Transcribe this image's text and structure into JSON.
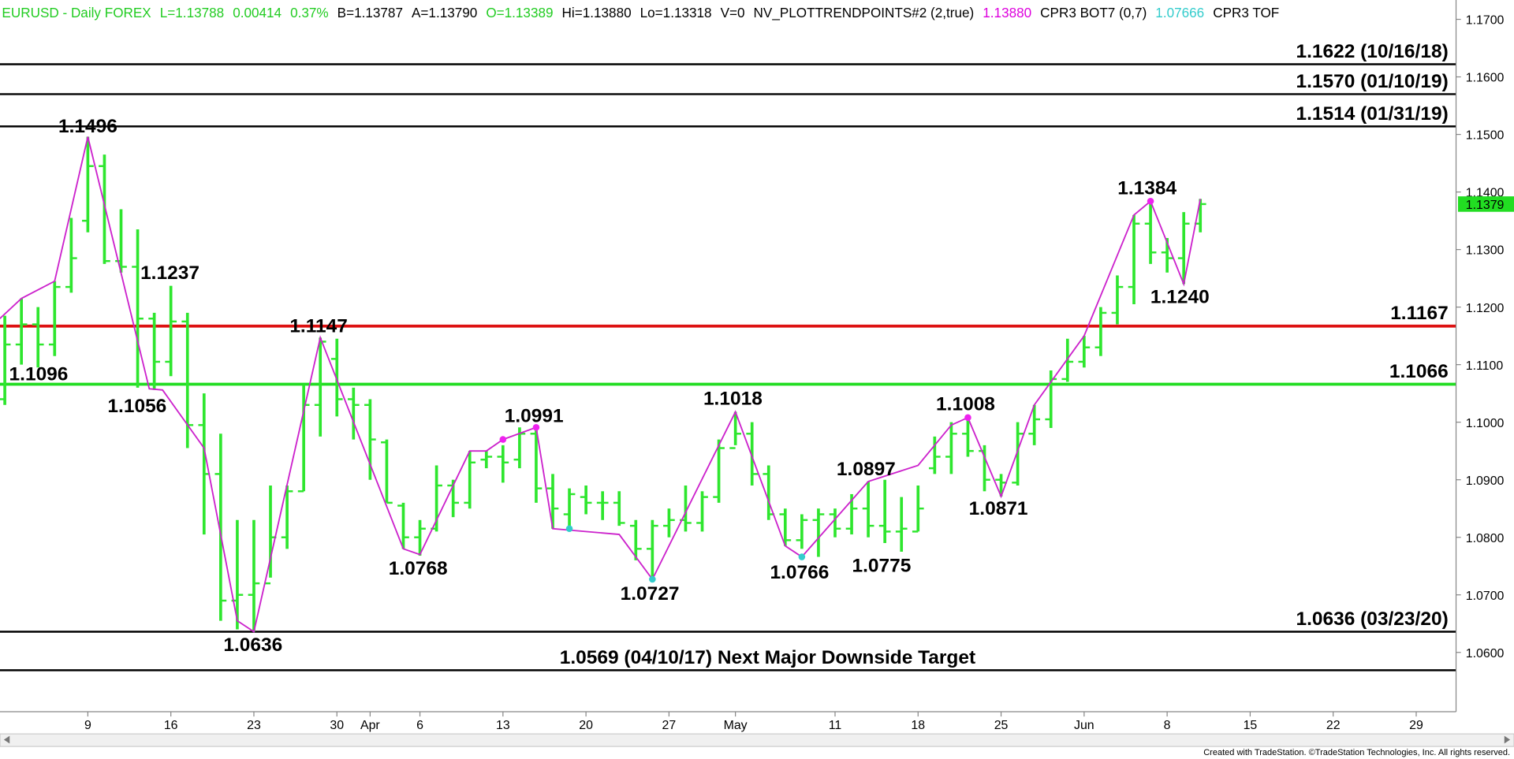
{
  "chart_data": {
    "type": "ohlc",
    "header": [
      {
        "text": "EURUSD - Daily  FOREX",
        "color": "#22cc22"
      },
      {
        "text": "L=1.13788",
        "color": "#22cc22"
      },
      {
        "text": "0.00414",
        "color": "#22cc22"
      },
      {
        "text": "0.37%",
        "color": "#22cc22"
      },
      {
        "text": "B=1.13787",
        "color": "#000000"
      },
      {
        "text": "A=1.13790",
        "color": "#000000"
      },
      {
        "text": "O=1.13389",
        "color": "#22cc22"
      },
      {
        "text": "Hi=1.13880",
        "color": "#000000"
      },
      {
        "text": "Lo=1.13318",
        "color": "#000000"
      },
      {
        "text": "V=0",
        "color": "#000000"
      },
      {
        "text": "NV_PLOTTRENDPOINTS#2 (2,true)",
        "color": "#000000"
      },
      {
        "text": "1.13880",
        "color": "#dd00dd"
      },
      {
        "text": "CPR3 BOT7 (0,7)",
        "color": "#000000"
      },
      {
        "text": "1.07666",
        "color": "#33cccc"
      },
      {
        "text": "CPR3 TOF",
        "color": "#000000"
      }
    ],
    "color": "#2ee62e",
    "open": [
      1.104,
      1.1135,
      1.117,
      1.1135,
      1.1235,
      1.135,
      1.1445,
      1.128,
      1.127,
      1.118,
      1.1105,
      1.1175,
      1.0995,
      1.091,
      1.069,
      1.07,
      1.072,
      1.08,
      1.088,
      1.103,
      1.111,
      1.104,
      1.103,
      1.0965,
      1.0855,
      1.08,
      1.0815,
      1.089,
      1.086,
      1.0935,
      1.094,
      1.0935,
      1.098,
      1.0885,
      1.084,
      1.087,
      1.086,
      1.086,
      1.082,
      1.078,
      1.082,
      1.083,
      1.0825,
      1.087,
      1.0955,
      1.098,
      1.091,
      1.084,
      1.0795,
      1.083,
      1.084,
      1.0815,
      1.085,
      1.082,
      1.081,
      1.081,
      1.092,
      1.094,
      1.098,
      1.095,
      1.09,
      1.0895,
      1.098,
      1.1005,
      1.1075,
      1.1105,
      1.113,
      1.119,
      1.1235,
      1.1345,
      1.1295,
      1.1285,
      1.1345
    ],
    "high": [
      1.1185,
      1.1215,
      1.12,
      1.1245,
      1.1355,
      1.1496,
      1.1465,
      1.137,
      1.1335,
      1.119,
      1.1237,
      1.119,
      1.105,
      1.098,
      1.083,
      1.083,
      1.089,
      1.089,
      1.1065,
      1.1147,
      1.1145,
      1.106,
      1.104,
      1.097,
      1.086,
      1.083,
      1.0925,
      1.09,
      1.095,
      1.095,
      1.096,
      1.0991,
      1.099,
      1.091,
      1.0885,
      1.089,
      1.088,
      1.088,
      1.083,
      1.083,
      1.085,
      1.089,
      1.088,
      1.097,
      1.1018,
      1.1,
      1.0925,
      1.085,
      1.084,
      1.085,
      1.085,
      1.0875,
      1.0897,
      1.09,
      1.087,
      1.089,
      1.0975,
      1.1,
      1.1008,
      1.096,
      1.091,
      1.1,
      1.103,
      1.109,
      1.1145,
      1.115,
      1.12,
      1.1255,
      1.136,
      1.1384,
      1.132,
      1.1365,
      1.1388
    ],
    "low": [
      1.103,
      1.11,
      1.1095,
      1.1115,
      1.1225,
      1.133,
      1.1275,
      1.126,
      1.106,
      1.1056,
      1.108,
      1.0955,
      1.0805,
      1.0655,
      1.064,
      1.0636,
      1.073,
      1.078,
      1.088,
      1.0975,
      1.101,
      1.097,
      1.09,
      1.086,
      1.078,
      1.0768,
      1.081,
      1.0835,
      1.085,
      1.092,
      1.0895,
      1.092,
      1.086,
      1.0815,
      1.081,
      1.084,
      1.083,
      1.082,
      1.076,
      1.0727,
      1.08,
      1.081,
      1.081,
      1.086,
      1.096,
      1.089,
      1.083,
      1.0785,
      1.078,
      1.0766,
      1.08,
      1.0805,
      1.08,
      1.079,
      1.0775,
      1.081,
      1.091,
      1.091,
      1.094,
      1.088,
      1.0871,
      1.089,
      1.096,
      1.099,
      1.107,
      1.1095,
      1.1115,
      1.117,
      1.1205,
      1.1275,
      1.126,
      1.124,
      1.133
    ],
    "close": [
      1.1135,
      1.117,
      1.1135,
      1.1235,
      1.1285,
      1.1445,
      1.128,
      1.127,
      1.118,
      1.1105,
      1.1175,
      1.0995,
      1.091,
      1.069,
      1.07,
      1.072,
      1.08,
      1.088,
      1.103,
      1.114,
      1.104,
      1.103,
      1.097,
      1.086,
      1.08,
      1.0815,
      1.089,
      1.086,
      1.093,
      1.094,
      1.093,
      1.098,
      1.0885,
      1.085,
      1.0875,
      1.086,
      1.086,
      1.0825,
      1.078,
      1.082,
      1.083,
      1.0825,
      1.087,
      1.0955,
      1.098,
      1.091,
      1.084,
      1.0795,
      1.083,
      1.084,
      1.0815,
      1.085,
      1.082,
      1.081,
      1.0815,
      1.085,
      1.094,
      1.098,
      1.095,
      1.09,
      1.0895,
      1.098,
      1.1005,
      1.1075,
      1.1105,
      1.113,
      1.119,
      1.1235,
      1.1345,
      1.1295,
      1.1285,
      1.1345,
      1.1379
    ],
    "trend_line": {
      "color": "#cc22cc",
      "x": [
        -0.3,
        1,
        3,
        5,
        8.7,
        9.5,
        12,
        14,
        15,
        19,
        24,
        25,
        28,
        29,
        30,
        32,
        33,
        37,
        39,
        44,
        47,
        48,
        52,
        55,
        57,
        58,
        60,
        62,
        65,
        68,
        69,
        71,
        72
      ],
      "values": [
        1.118,
        1.1215,
        1.1245,
        1.1496,
        1.1058,
        1.1056,
        1.0955,
        1.0655,
        1.0636,
        1.1147,
        1.078,
        1.077,
        1.095,
        1.095,
        1.097,
        1.0991,
        1.0815,
        1.0805,
        1.0727,
        1.1018,
        1.0785,
        1.0766,
        1.0897,
        1.0925,
        1.0995,
        1.1008,
        1.0871,
        1.103,
        1.115,
        1.136,
        1.1384,
        1.124,
        1.1388
      ]
    },
    "trend_points": [
      {
        "color": "#ee22ee",
        "x": [
          30,
          32,
          58,
          69
        ],
        "values": [
          1.097,
          1.0991,
          1.1008,
          1.1384
        ]
      },
      {
        "color": "#33cccc",
        "x": [
          34,
          39,
          48
        ],
        "values": [
          1.0815,
          1.0727,
          1.0766
        ]
      }
    ],
    "levels": [
      {
        "value": 1.1622,
        "label": "1.1622 (10/16/18)",
        "color": "#000000"
      },
      {
        "value": 1.157,
        "label": "1.1570 (01/10/19)",
        "color": "#000000"
      },
      {
        "value": 1.1514,
        "label": "1.1514 (01/31/19)",
        "color": "#000000"
      },
      {
        "value": 1.1167,
        "label": "1.1167",
        "color": "#dd1111"
      },
      {
        "value": 1.1066,
        "label": "1.1066",
        "color": "#22dd22"
      },
      {
        "value": 1.0636,
        "label": "1.0636 (03/23/20)",
        "color": "#000000"
      },
      {
        "value": 1.0569,
        "label": "1.0569 (04/10/17) Next Major Downside Target",
        "color": "#000000"
      }
    ],
    "annotations": [
      "1.1496",
      "1.1237",
      "1.1096",
      "1.1056",
      "1.1147",
      "1.0636",
      "1.0768",
      "1.0991",
      "1.1018",
      "1.0727",
      "1.0766",
      "1.0897",
      "1.0775",
      "1.1008",
      "1.0871",
      "1.1384",
      "1.1240"
    ],
    "last_price": {
      "value": 1.1379,
      "label": "1.1379",
      "color": "#22dd22"
    },
    "xlim": [
      -0.29,
      87.4
    ],
    "xticks": [
      {
        "value": 5,
        "label": "9"
      },
      {
        "value": 10,
        "label": "16"
      },
      {
        "value": 15,
        "label": "23"
      },
      {
        "value": 20,
        "label": "30"
      },
      {
        "value": 22,
        "label": "Apr"
      },
      {
        "value": 25,
        "label": "6"
      },
      {
        "value": 30,
        "label": "13"
      },
      {
        "value": 35,
        "label": "20"
      },
      {
        "value": 40,
        "label": "27"
      },
      {
        "value": 44,
        "label": "May"
      },
      {
        "value": 50,
        "label": "11"
      },
      {
        "value": 55,
        "label": "18"
      },
      {
        "value": 60,
        "label": "25"
      },
      {
        "value": 65,
        "label": "Jun"
      },
      {
        "value": 70,
        "label": "8"
      },
      {
        "value": 75,
        "label": "15"
      },
      {
        "value": 80,
        "label": "22"
      },
      {
        "value": 85,
        "label": "29"
      }
    ],
    "ylim": [
      1.0497,
      1.17336
    ],
    "yticks": [
      {
        "value": 1.17,
        "label": "1.1700"
      },
      {
        "value": 1.16,
        "label": "1.1600"
      },
      {
        "value": 1.15,
        "label": "1.1500"
      },
      {
        "value": 1.14,
        "label": "1.1400"
      },
      {
        "value": 1.13,
        "label": "1.1300"
      },
      {
        "value": 1.12,
        "label": "1.1200"
      },
      {
        "value": 1.11,
        "label": "1.1100"
      },
      {
        "value": 1.1,
        "label": "1.1000"
      },
      {
        "value": 1.09,
        "label": "1.0900"
      },
      {
        "value": 1.08,
        "label": "1.0800"
      },
      {
        "value": 1.07,
        "label": "1.0700"
      },
      {
        "value": 1.06,
        "label": "1.0600"
      }
    ],
    "footer": "Created with TradeStation. ©TradeStation Technologies, Inc. All rights reserved."
  }
}
